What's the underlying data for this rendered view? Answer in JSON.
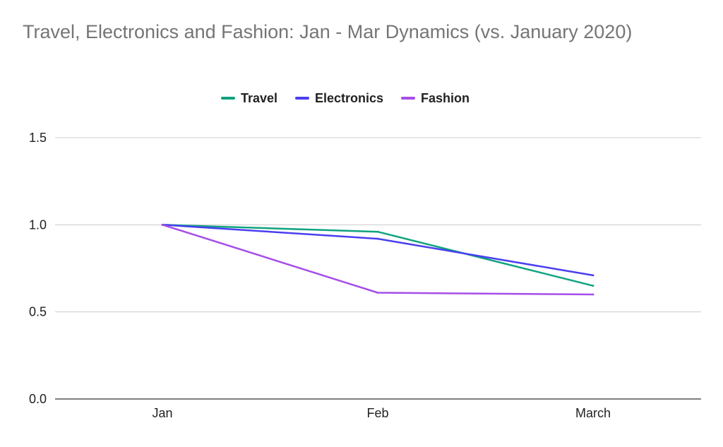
{
  "chart_data": {
    "type": "line",
    "title": "Travel, Electronics and Fashion: Jan - Mar Dynamics (vs. January 2020)",
    "xlabel": "",
    "ylabel": "",
    "categories": [
      "Jan",
      "Feb",
      "March"
    ],
    "ylim": [
      0,
      1.5
    ],
    "yticks": [
      0.0,
      0.5,
      1.0,
      1.5
    ],
    "ytick_labels": [
      "0.0",
      "0.5",
      "1.0",
      "1.5"
    ],
    "grid": true,
    "legend_position": "top-center",
    "series": [
      {
        "name": "Travel",
        "values": [
          1.0,
          0.96,
          0.65
        ],
        "color": "#0fa37f"
      },
      {
        "name": "Electronics",
        "values": [
          1.0,
          0.92,
          0.71
        ],
        "color": "#4a3ff0"
      },
      {
        "name": "Fashion",
        "values": [
          1.0,
          0.61,
          0.6
        ],
        "color": "#a64ee8"
      }
    ]
  }
}
